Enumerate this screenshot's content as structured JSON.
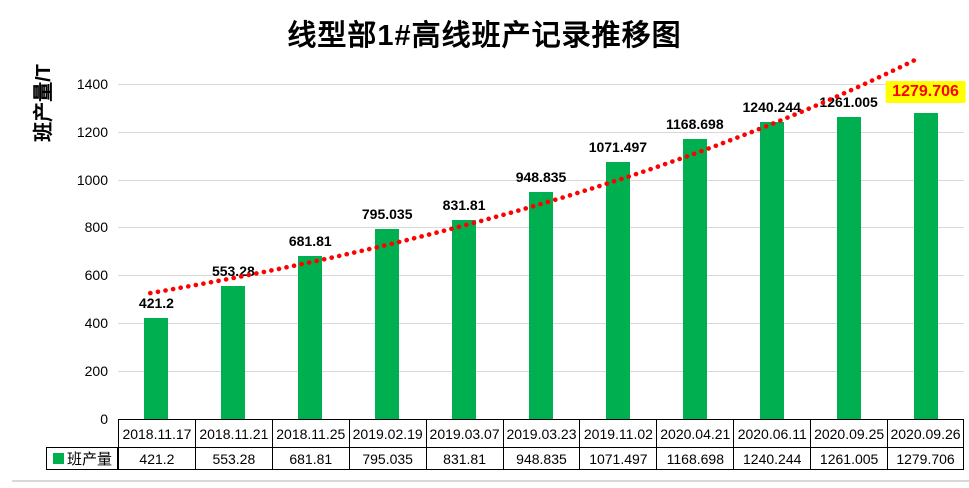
{
  "title": "线型部1#高线班产记录推移图",
  "chart_data": {
    "type": "bar",
    "title": "线型部1#高线班产记录推移图",
    "ylabel": "班产量/T",
    "xlabel": "",
    "categories": [
      "2018.11.17",
      "2018.11.21",
      "2018.11.25",
      "2019.02.19",
      "2019.03.07",
      "2019.03.23",
      "2019.11.02",
      "2020.04.21",
      "2020.06.11",
      "2020.09.25",
      "2020.09.26"
    ],
    "series": [
      {
        "name": "班产量",
        "values": [
          "421.2",
          "553.28",
          "681.81",
          "795.035",
          "831.81",
          "948.835",
          "1071.497",
          "1168.698",
          "1240.244",
          "1261.005",
          "1279.706"
        ]
      }
    ],
    "ylim": [
      0,
      1500
    ],
    "ytick_step": 200,
    "ytick_labels": [
      "0",
      "200",
      "400",
      "600",
      "800",
      "1000",
      "1200",
      "1400"
    ],
    "grid": true,
    "gridline_color": "#d9d9d9",
    "bar_color": "#00b050",
    "data_labels": true,
    "highlight": {
      "index": 10,
      "bg": "#ffff00",
      "color": "#ff0000"
    },
    "trendline": {
      "type": "exponential",
      "color": "#ff0000",
      "style": "dotted",
      "a": 530,
      "b": 0.1054,
      "i_start": -0.08,
      "i_end": 9.91
    },
    "legend": {
      "label": "班产量",
      "marker_color": "#00b050",
      "position": "bottom-table"
    }
  }
}
